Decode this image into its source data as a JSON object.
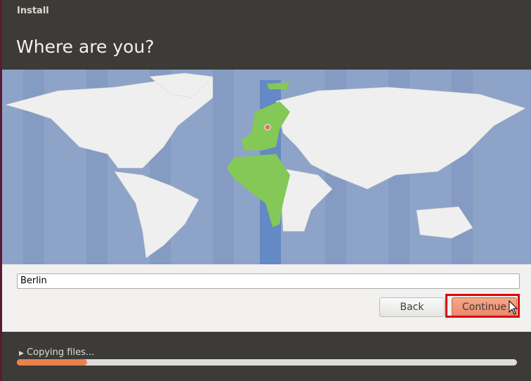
{
  "window": {
    "title": "Install"
  },
  "page": {
    "heading": "Where are you?"
  },
  "location": {
    "value": "Berlin",
    "selected_timezone": "Europe/Berlin"
  },
  "buttons": {
    "back": "Back",
    "continue": "Continue"
  },
  "progress": {
    "label": "Copying files...",
    "percent": 14
  },
  "colors": {
    "accent": "#e9824f",
    "highlight": "#e00000",
    "map_ocean": "#8ea3c8",
    "selected_zone": "#84c857"
  }
}
